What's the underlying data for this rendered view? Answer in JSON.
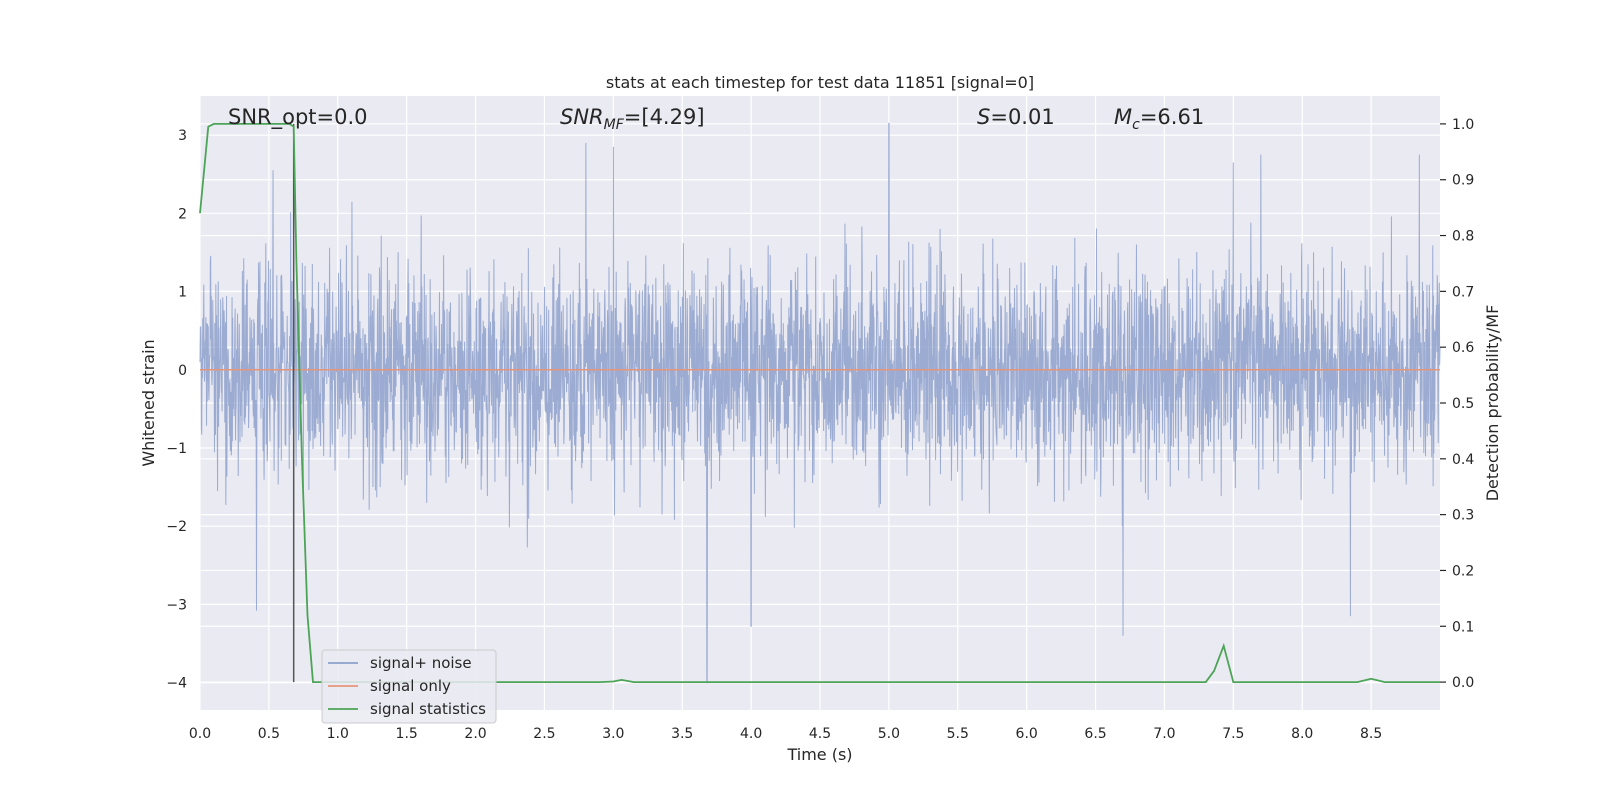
{
  "chart_data": {
    "type": "line",
    "title": "stats at each timestep for test data 11851 [signal=0]",
    "xlabel": "Time (s)",
    "ylabel": "Whitened strain",
    "y2label": "Detection probability/MF",
    "xlim": [
      0,
      9.0
    ],
    "ylim": [
      -4.35,
      3.5
    ],
    "y2lim": [
      -0.05,
      1.05
    ],
    "xticks": [
      0.0,
      0.5,
      1.0,
      1.5,
      2.0,
      2.5,
      3.0,
      3.5,
      4.0,
      4.5,
      5.0,
      5.5,
      6.0,
      6.5,
      7.0,
      7.5,
      8.0,
      8.5
    ],
    "xtick_labels": [
      "0.0",
      "0.5",
      "1.0",
      "1.5",
      "2.0",
      "2.5",
      "3.0",
      "3.5",
      "4.0",
      "4.5",
      "5.0",
      "5.5",
      "6.0",
      "6.5",
      "7.0",
      "7.5",
      "8.0",
      "8.5"
    ],
    "yticks": [
      -4,
      -3,
      -2,
      -1,
      0,
      1,
      2,
      3
    ],
    "ytick_labels": [
      "−4",
      "−3",
      "−2",
      "−1",
      "0",
      "1",
      "2",
      "3"
    ],
    "y2ticks": [
      0.0,
      0.1,
      0.2,
      0.3,
      0.4,
      0.5,
      0.6,
      0.7,
      0.8,
      0.9,
      1.0
    ],
    "y2tick_labels": [
      "0.0",
      "0.1",
      "0.2",
      "0.3",
      "0.4",
      "0.5",
      "0.6",
      "0.7",
      "0.8",
      "0.9",
      "1.0"
    ],
    "grid": true,
    "legend_position": "lower-left",
    "annotations": {
      "snr_opt": "SNR_opt=0.0",
      "snr_mf_main": "SNR",
      "snr_mf_sub": "MF",
      "snr_mf_value": "=[4.29]",
      "s_main": "S",
      "s_value": "=0.01",
      "mc_main": "M",
      "mc_sub": "c",
      "mc_value": "=6.61"
    },
    "vertical_marker_x": 0.68,
    "series": [
      {
        "name": "signal+ noise",
        "color": "#8da0cb",
        "axis": "left",
        "description_values": "whitened noise, roughly ±2 with peaks near 3.15 at 5.0 s and -4.0 at 3.68 s",
        "peaks": [
          {
            "x": 0.41,
            "y": -3.08
          },
          {
            "x": 0.53,
            "y": 2.55
          },
          {
            "x": 2.8,
            "y": 2.9
          },
          {
            "x": 3.0,
            "y": 2.85
          },
          {
            "x": 3.68,
            "y": -4.0
          },
          {
            "x": 4.0,
            "y": -3.28
          },
          {
            "x": 5.0,
            "y": 3.15
          },
          {
            "x": 6.7,
            "y": -3.4
          },
          {
            "x": 7.5,
            "y": 2.65
          },
          {
            "x": 7.7,
            "y": 2.75
          },
          {
            "x": 8.35,
            "y": -3.15
          },
          {
            "x": 8.85,
            "y": 2.75
          }
        ]
      },
      {
        "name": "signal only",
        "color": "#e5957a",
        "axis": "left",
        "x": [
          0.0,
          9.0
        ],
        "y": [
          0.0,
          0.0
        ]
      },
      {
        "name": "signal statistics",
        "color": "#4ca457",
        "axis": "right",
        "x": [
          0.0,
          0.06,
          0.1,
          0.15,
          0.3,
          0.5,
          0.65,
          0.68,
          0.7,
          0.74,
          0.78,
          0.82,
          1.0,
          2.0,
          2.9,
          3.0,
          3.06,
          3.15,
          3.5,
          4.0,
          5.0,
          6.0,
          7.0,
          7.3,
          7.36,
          7.43,
          7.5,
          7.6,
          8.0,
          8.4,
          8.5,
          8.6,
          9.0
        ],
        "y": [
          0.84,
          0.995,
          1.0,
          1.0,
          1.0,
          1.0,
          1.0,
          0.995,
          0.75,
          0.4,
          0.12,
          0.0,
          0.0,
          0.0,
          0.0,
          0.001,
          0.004,
          0.0,
          0.0,
          0.0,
          0.0,
          0.0,
          0.0,
          0.0,
          0.02,
          0.065,
          0.0,
          0.0,
          0.0,
          0.0,
          0.006,
          0.0,
          0.0
        ]
      }
    ]
  }
}
